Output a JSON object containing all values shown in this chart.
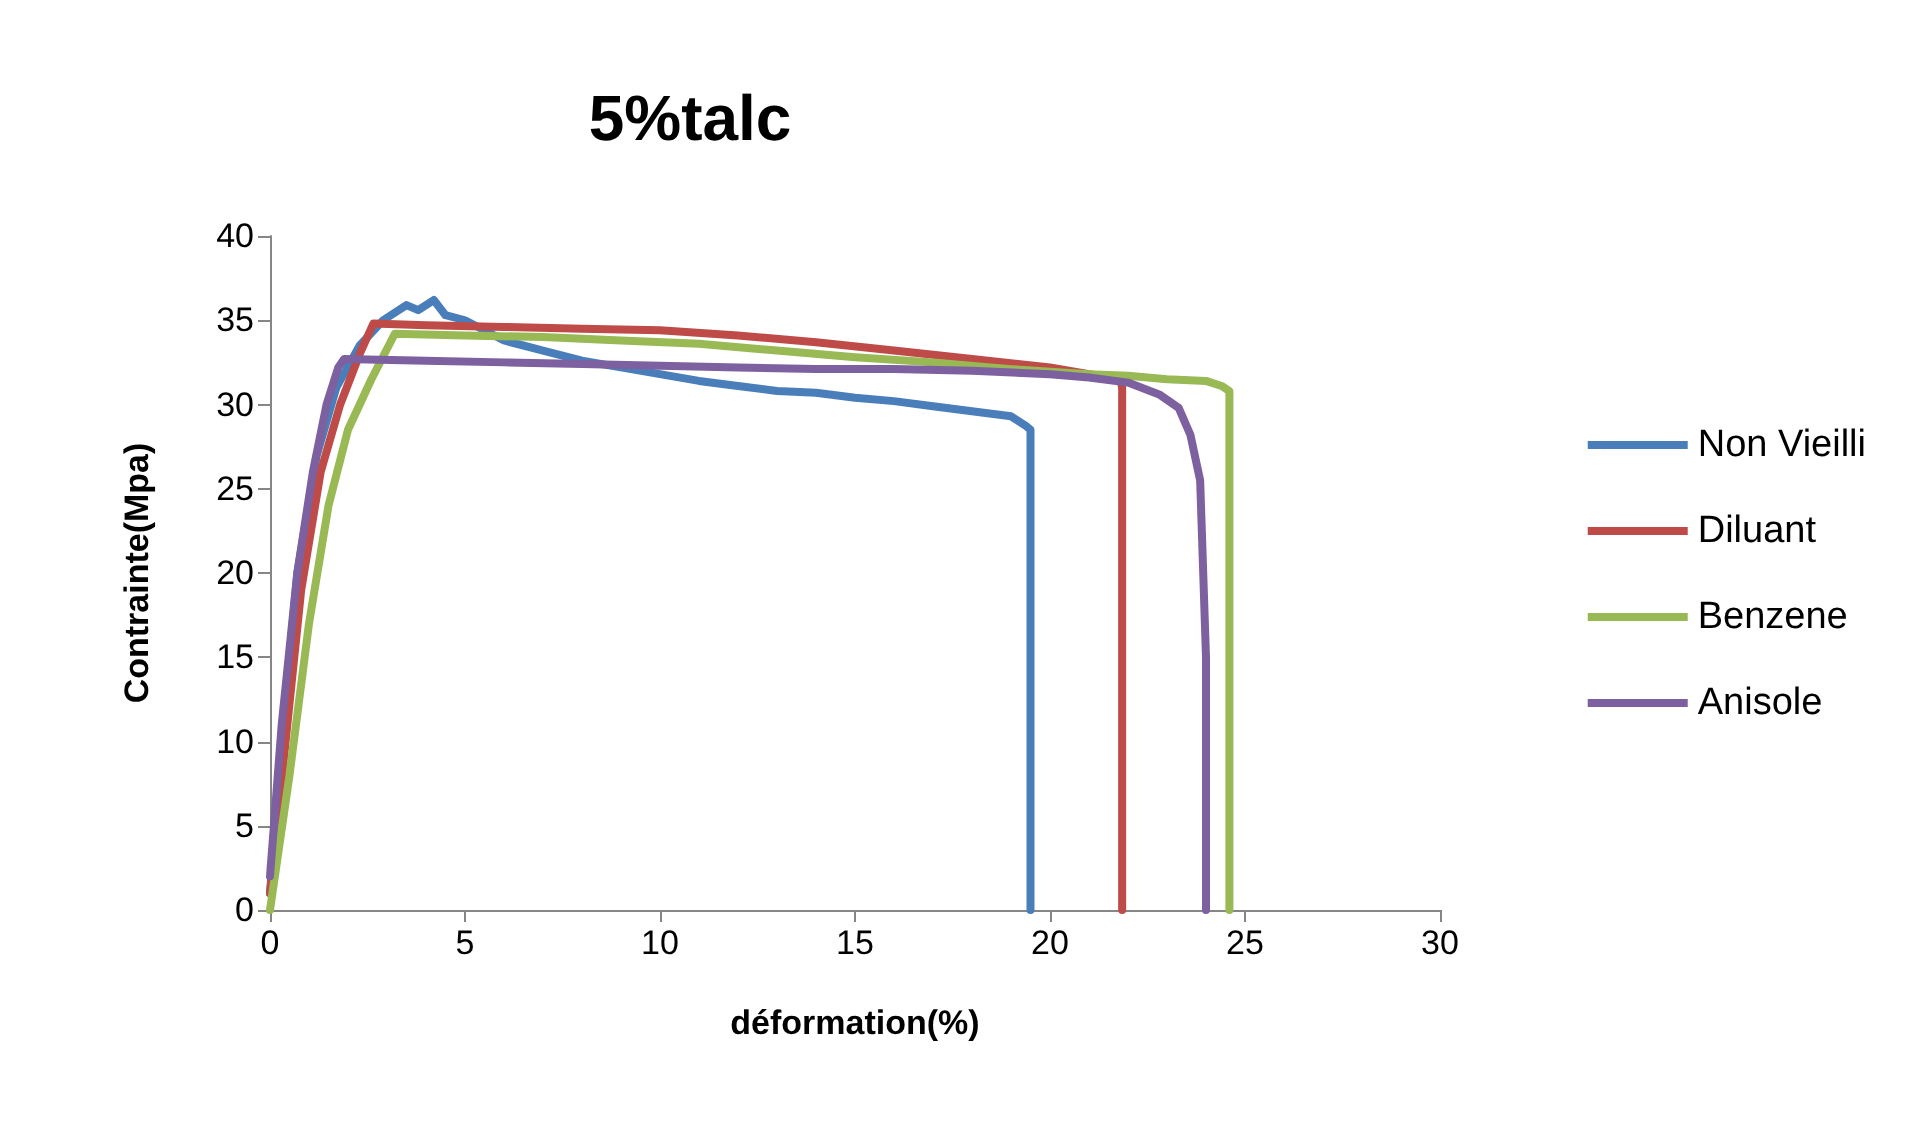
{
  "chart_data": {
    "type": "line",
    "title": "5%talc",
    "xlabel": "déformation(%)",
    "ylabel": "Contrainte(Mpa)",
    "xlim": [
      0,
      30
    ],
    "xticks": [
      0,
      5,
      10,
      15,
      20,
      25,
      30
    ],
    "ylim": [
      0,
      40
    ],
    "yticks": [
      0,
      5,
      10,
      15,
      20,
      25,
      30,
      35,
      40
    ],
    "grid": false,
    "legend": "right",
    "marker": "none",
    "line_style": "solid",
    "series": [
      {
        "name": "Non Vieilli",
        "color": "#4a7ebb",
        "x": [
          0,
          0.3,
          0.7,
          1.2,
          1.7,
          2.3,
          2.9,
          3.5,
          3.8,
          4.2,
          4.5,
          5,
          6,
          7,
          8,
          9,
          10,
          11,
          12,
          13,
          14,
          15,
          16,
          17,
          18,
          19,
          19.4,
          19.5,
          19.5
        ],
        "values": [
          1,
          10,
          20,
          27,
          31,
          33.5,
          35,
          35.9,
          35.6,
          36.2,
          35.3,
          35,
          33.8,
          33.2,
          32.6,
          32.2,
          31.8,
          31.4,
          31.1,
          30.8,
          30.7,
          30.4,
          30.2,
          29.9,
          29.6,
          29.3,
          28.7,
          28.5,
          0
        ]
      },
      {
        "name": "Diluant",
        "color": "#be4b48",
        "x": [
          0,
          0.4,
          0.8,
          1.3,
          1.8,
          2.3,
          2.65,
          4,
          6,
          8,
          10,
          12,
          14,
          16,
          18,
          20,
          21,
          21.8,
          21.85,
          21.85
        ],
        "values": [
          1,
          10,
          19,
          26,
          30,
          33,
          34.8,
          34.7,
          34.6,
          34.5,
          34.4,
          34.1,
          33.7,
          33.2,
          32.7,
          32.2,
          31.8,
          31.5,
          31,
          0
        ]
      },
      {
        "name": "Benzene",
        "color": "#98b954",
        "x": [
          0,
          0.5,
          1,
          1.5,
          2,
          2.6,
          3.2,
          5,
          7,
          9,
          11,
          13,
          15,
          17,
          19,
          21,
          22,
          23,
          24,
          24.4,
          24.6,
          24.6
        ],
        "values": [
          0,
          8,
          17,
          24,
          28.5,
          31.5,
          34.2,
          34.1,
          34,
          33.8,
          33.6,
          33.2,
          32.8,
          32.5,
          32.1,
          31.8,
          31.7,
          31.5,
          31.4,
          31.1,
          30.8,
          0
        ]
      },
      {
        "name": "Anisole",
        "color": "#7d60a0",
        "x": [
          0,
          0.3,
          0.7,
          1.1,
          1.45,
          1.75,
          1.9,
          4,
          6,
          8,
          10,
          12,
          14,
          16,
          18,
          20,
          21,
          22,
          22.8,
          23.3,
          23.6,
          23.85,
          24,
          24
        ],
        "values": [
          2,
          11,
          20,
          26,
          30,
          32.2,
          32.7,
          32.6,
          32.5,
          32.4,
          32.3,
          32.2,
          32.1,
          32.1,
          32,
          31.8,
          31.6,
          31.3,
          30.6,
          29.8,
          28.2,
          25.5,
          15,
          0
        ]
      }
    ]
  }
}
